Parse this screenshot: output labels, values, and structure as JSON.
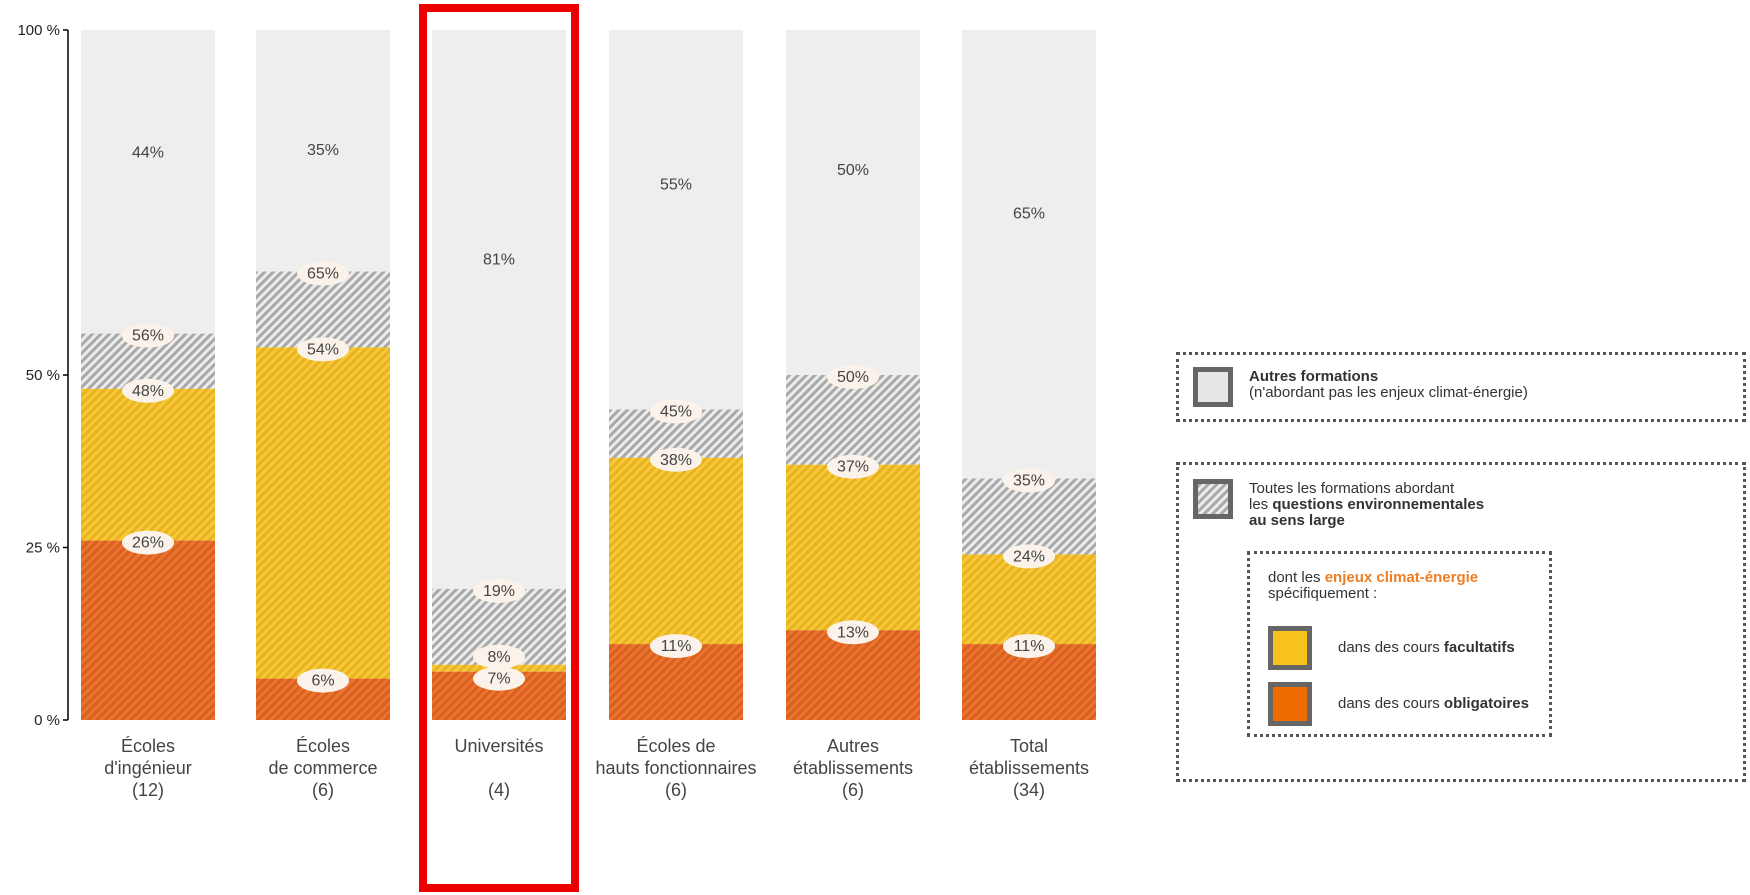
{
  "chart_data": {
    "type": "bar",
    "stacked": true,
    "y_ticks": [
      "100 %",
      "50 %",
      "25 %",
      "0 %"
    ],
    "ylim": [
      0,
      100
    ],
    "categories": [
      {
        "line1": "Écoles",
        "line2": "d'ingénieur",
        "count": "(12)"
      },
      {
        "line1": "Écoles",
        "line2": "de commerce",
        "count": "(6)"
      },
      {
        "line1": "Universités",
        "line2": "",
        "count": "(4)"
      },
      {
        "line1": "Écoles de",
        "line2": "hauts fonctionnaires",
        "count": "(6)"
      },
      {
        "line1": "Autres",
        "line2": "établissements",
        "count": "(6)"
      },
      {
        "line1": "Total",
        "line2": "établissements",
        "count": "(34)"
      }
    ],
    "highlighted_category_index": 2,
    "cumulative": {
      "obligatoires": [
        26,
        6,
        7,
        11,
        13,
        11
      ],
      "facultatifs": [
        48,
        54,
        8,
        38,
        37,
        24
      ],
      "environnement": [
        56,
        65,
        19,
        45,
        50,
        35
      ]
    },
    "labels": {
      "obligatoires": [
        "26%",
        "6%",
        "7%",
        "11%",
        "13%",
        "11%"
      ],
      "facultatifs": [
        "48%",
        "54%",
        "8%",
        "38%",
        "37%",
        "24%"
      ],
      "environnement": [
        "56%",
        "65%",
        "19%",
        "45%",
        "50%",
        "35%"
      ],
      "autres": [
        "44%",
        "35%",
        "81%",
        "55%",
        "50%",
        "65%"
      ]
    },
    "colors": {
      "autres": "#eeeeee",
      "hatch_grey": "#a9a9a9",
      "facultatifs": "#f2c12e",
      "obligatoires": "#e8702a",
      "highlight": "#ee0000",
      "clim_text": "#ef7d22"
    }
  },
  "legend": {
    "autres_title": "Autres formations",
    "autres_sub": "(n'abordant pas les enjeux climat-énergie)",
    "env_line1": "Toutes les formations abordant",
    "env_line2_pre": "les ",
    "env_line2_bold": "questions environnementales",
    "env_line3_bold": "au sens large",
    "clim_pre": "dont les ",
    "clim_orange": "enjeux climat-énergie",
    "clim_line2": "spécifiquement :",
    "fac_pre": "dans des cours ",
    "fac_bold": "facultatifs",
    "obl_pre": "dans des cours ",
    "obl_bold": "obligatoires"
  }
}
